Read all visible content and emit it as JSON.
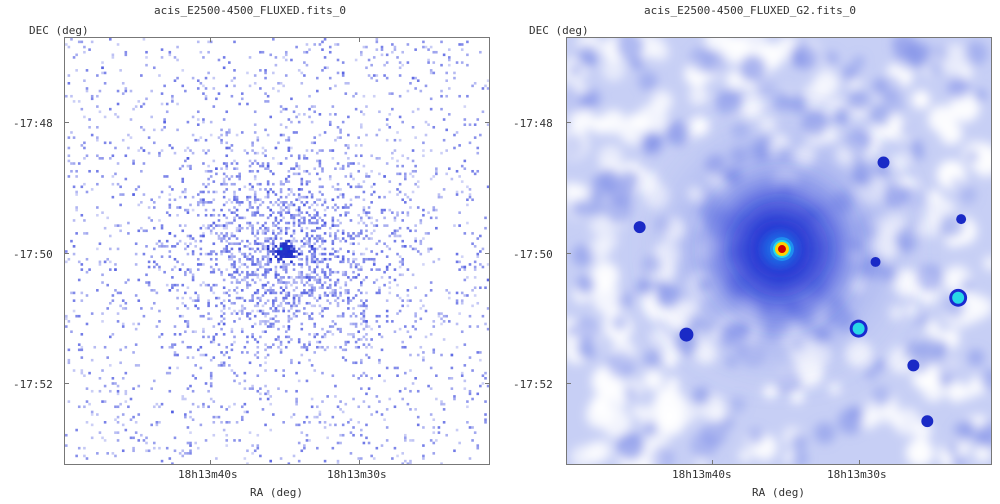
{
  "panels": [
    {
      "title": "acis_E2500-4500_FLUXED.fits_0",
      "ylabel": "DEC (deg)",
      "xlabel": "RA (deg)",
      "yticks": [
        "-17:48",
        "-17:50",
        "-17:52"
      ],
      "xticks": [
        "18h13m40s",
        "18h13m30s"
      ]
    },
    {
      "title": "acis_E2500-4500_FLUXED_G2.fits_0",
      "ylabel": "DEC (deg)",
      "xlabel": "RA (deg)",
      "yticks": [
        "-17:48",
        "-17:50",
        "-17:52"
      ],
      "xticks": [
        "18h13m40s",
        "18h13m30s"
      ]
    }
  ],
  "colors": {
    "frame": "#777777",
    "sparse_pixels": "#4a56e0",
    "smooth_base": "#c7cff5",
    "hotspot_core": "#cc0000",
    "hotspot_ring": "#ffd200",
    "source_cyan": "#28d8e6"
  }
}
